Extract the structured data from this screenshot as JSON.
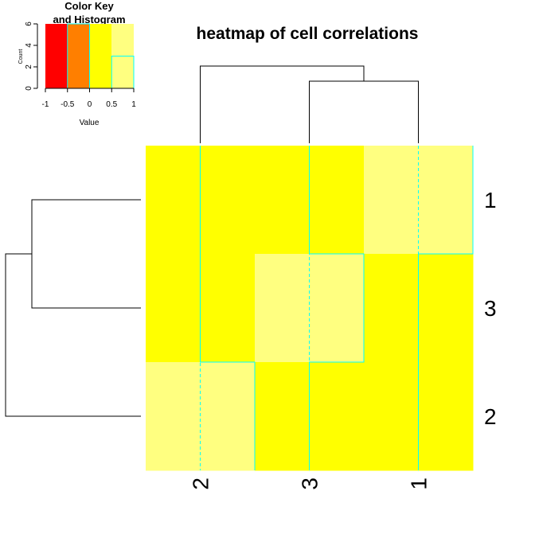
{
  "chart_data": {
    "type": "heatmap",
    "title": "heatmap of cell correlations",
    "row_labels": [
      "1",
      "3",
      "2"
    ],
    "col_labels": [
      "2",
      "3",
      "1"
    ],
    "values": [
      [
        0.0,
        0.0,
        1.0
      ],
      [
        0.0,
        1.0,
        0.0
      ],
      [
        1.0,
        0.0,
        0.0
      ]
    ],
    "trace": "cyan",
    "color_key": {
      "title_line1": "Color Key",
      "title_line2": "and Histogram",
      "xlabel": "Value",
      "ylabel": "Count",
      "breaks": [
        -1,
        -0.5,
        0,
        0.5,
        1
      ],
      "x_ticks": [
        "-1",
        "-0.5",
        "0",
        "0.5",
        "1"
      ],
      "y_ticks": [
        "0",
        "2",
        "4",
        "6"
      ],
      "ylim": [
        0,
        6
      ],
      "colors": [
        "#FF0000",
        "#FF7F00",
        "#FFFF00",
        "#FFFF80"
      ],
      "histogram_counts": [
        0,
        6,
        0,
        3
      ]
    },
    "row_dendrogram": [
      [
        "3",
        "2"
      ],
      "1"
    ],
    "col_dendrogram": [
      "2",
      [
        "3",
        "1"
      ]
    ]
  }
}
